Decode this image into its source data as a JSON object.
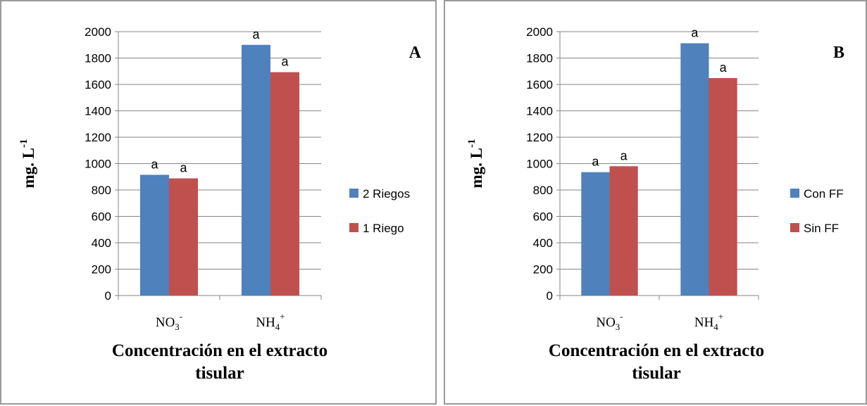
{
  "chart_data": [
    {
      "type": "bar",
      "panel_label": "A",
      "categories": [
        {
          "base": "NO",
          "sub": "3",
          "sup": "-"
        },
        {
          "base": "NH",
          "sub": "4",
          "sup": "+"
        }
      ],
      "series": [
        {
          "name": "2 Riegos",
          "values": [
            915,
            1900
          ],
          "color": "#4f81bd"
        },
        {
          "name": "1 Riego",
          "values": [
            888,
            1693
          ],
          "color": "#c0504d"
        }
      ],
      "data_labels": [
        [
          "a",
          "a"
        ],
        [
          "a",
          "a"
        ]
      ],
      "ylabel": {
        "base": "mg. L",
        "sup": "-1"
      },
      "xlabel": [
        "Concentración en el extracto",
        "tisular"
      ],
      "ylim": [
        0,
        2000
      ],
      "yticks": [
        0,
        200,
        400,
        600,
        800,
        1000,
        1200,
        1400,
        1600,
        1800,
        2000
      ],
      "grid": true,
      "legend": "right"
    },
    {
      "type": "bar",
      "panel_label": "B",
      "categories": [
        {
          "base": "NO",
          "sub": "3",
          "sup": "-"
        },
        {
          "base": "NH",
          "sub": "4",
          "sup": "+"
        }
      ],
      "series": [
        {
          "name": "Con FF",
          "values": [
            935,
            1912
          ],
          "color": "#4f81bd"
        },
        {
          "name": "Sin FF",
          "values": [
            980,
            1648
          ],
          "color": "#c0504d"
        }
      ],
      "data_labels": [
        [
          "a",
          "a"
        ],
        [
          "a",
          "a"
        ]
      ],
      "ylabel": {
        "base": "mg. L",
        "sup": "-1"
      },
      "xlabel": [
        "Concentración en el extracto",
        "tisular"
      ],
      "ylim": [
        0,
        2000
      ],
      "yticks": [
        0,
        200,
        400,
        600,
        800,
        1000,
        1200,
        1400,
        1600,
        1800,
        2000
      ],
      "grid": true,
      "legend": "right"
    }
  ]
}
